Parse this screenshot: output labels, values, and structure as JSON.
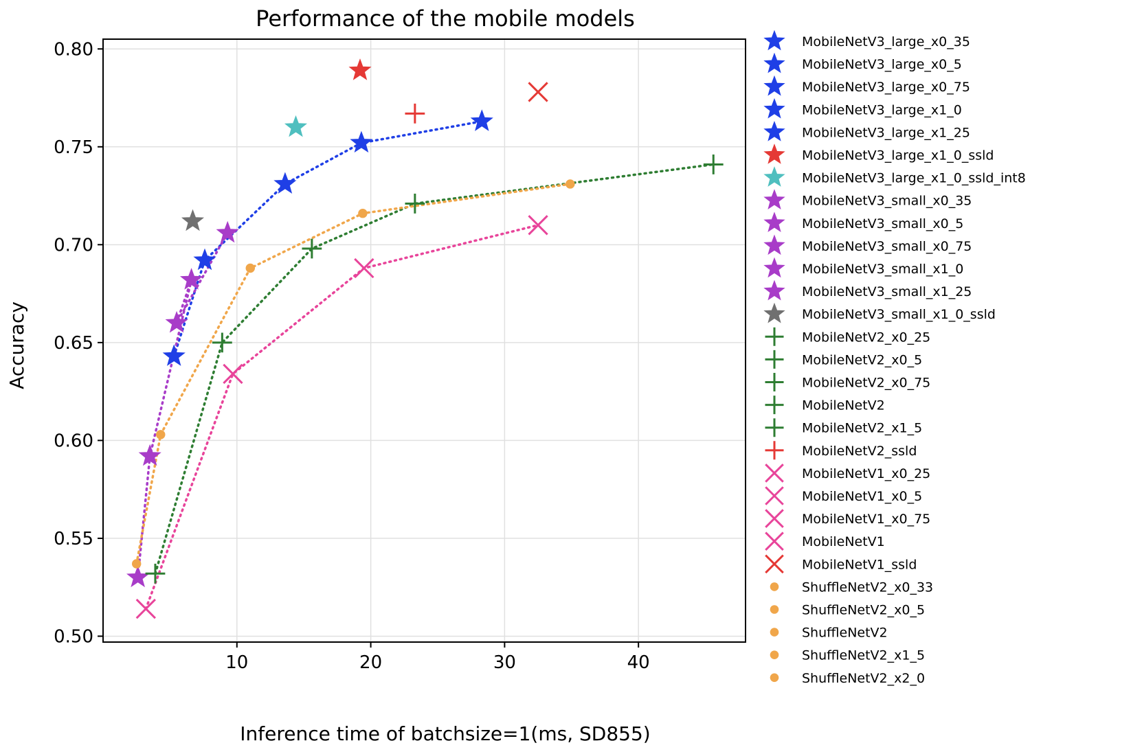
{
  "chart_data": {
    "type": "scatter",
    "title": "Performance of the mobile models",
    "xlabel": "Inference time of batchsize=1(ms, SD855)",
    "ylabel": "Accuracy",
    "xlim": [
      0,
      48
    ],
    "ylim": [
      0.497,
      0.805
    ],
    "xticks": [
      10,
      20,
      30,
      40
    ],
    "yticks": [
      0.5,
      0.55,
      0.6,
      0.65,
      0.7,
      0.75,
      0.8
    ],
    "ytick_labels": [
      "0.50",
      "0.55",
      "0.60",
      "0.65",
      "0.70",
      "0.75",
      "0.80"
    ],
    "xtick_labels": [
      "10",
      "20",
      "30",
      "40"
    ],
    "grid": true,
    "legend_position": "outside-right",
    "lines": [
      {
        "group": "MobileNetV3_large",
        "color": "#1f3fe6",
        "style": "dotted",
        "x": [
          5.3,
          7.6,
          13.6,
          19.3,
          28.3
        ],
        "y": [
          0.643,
          0.692,
          0.731,
          0.752,
          0.763
        ]
      },
      {
        "group": "MobileNetV3_small",
        "color": "#a83cc8",
        "style": "dotted",
        "x": [
          2.6,
          3.5,
          6.6,
          5.5,
          9.3
        ],
        "y": [
          0.53,
          0.592,
          0.682,
          0.66,
          0.706
        ]
      },
      {
        "group": "MobileNetV2",
        "color": "#2e7d32",
        "style": "dotted",
        "x": [
          3.9,
          8.9,
          15.6,
          23.3,
          45.6
        ],
        "y": [
          0.532,
          0.65,
          0.698,
          0.721,
          0.741
        ]
      },
      {
        "group": "MobileNetV1",
        "color": "#e8449a",
        "style": "dotted",
        "x": [
          3.2,
          9.7,
          19.5,
          32.5
        ],
        "y": [
          0.514,
          0.634,
          0.688,
          0.71
        ]
      },
      {
        "group": "ShuffleNetV2",
        "color": "#f0a64a",
        "style": "dotted",
        "x": [
          2.5,
          4.3,
          11.0,
          19.4,
          34.9
        ],
        "y": [
          0.537,
          0.603,
          0.688,
          0.716,
          0.731
        ]
      }
    ],
    "series": [
      {
        "name": "MobileNetV3_large_x0_35",
        "marker": "star",
        "color": "#1f3fe6",
        "x": 5.3,
        "y": 0.643
      },
      {
        "name": "MobileNetV3_large_x0_5",
        "marker": "star",
        "color": "#1f3fe6",
        "x": 7.6,
        "y": 0.692
      },
      {
        "name": "MobileNetV3_large_x0_75",
        "marker": "star",
        "color": "#1f3fe6",
        "x": 13.6,
        "y": 0.731
      },
      {
        "name": "MobileNetV3_large_x1_0",
        "marker": "star",
        "color": "#1f3fe6",
        "x": 19.3,
        "y": 0.752
      },
      {
        "name": "MobileNetV3_large_x1_25",
        "marker": "star",
        "color": "#1f3fe6",
        "x": 28.3,
        "y": 0.763
      },
      {
        "name": "MobileNetV3_large_x1_0_ssld",
        "marker": "star",
        "color": "#e53935",
        "x": 19.2,
        "y": 0.789
      },
      {
        "name": "MobileNetV3_large_x1_0_ssld_int8",
        "marker": "star",
        "color": "#4fbfbf",
        "x": 14.4,
        "y": 0.76
      },
      {
        "name": "MobileNetV3_small_x0_35",
        "marker": "star",
        "color": "#a83cc8",
        "x": 2.6,
        "y": 0.53
      },
      {
        "name": "MobileNetV3_small_x0_5",
        "marker": "star",
        "color": "#a83cc8",
        "x": 3.5,
        "y": 0.592
      },
      {
        "name": "MobileNetV3_small_x0_75",
        "marker": "star",
        "color": "#a83cc8",
        "x": 5.5,
        "y": 0.66
      },
      {
        "name": "MobileNetV3_small_x1_0",
        "marker": "star",
        "color": "#a83cc8",
        "x": 6.6,
        "y": 0.682
      },
      {
        "name": "MobileNetV3_small_x1_25",
        "marker": "star",
        "color": "#a83cc8",
        "x": 9.3,
        "y": 0.706
      },
      {
        "name": "MobileNetV3_small_x1_0_ssld",
        "marker": "star",
        "color": "#707070",
        "x": 6.7,
        "y": 0.712
      },
      {
        "name": "MobileNetV2_x0_25",
        "marker": "plus",
        "color": "#2e7d32",
        "x": 3.9,
        "y": 0.532
      },
      {
        "name": "MobileNetV2_x0_5",
        "marker": "plus",
        "color": "#2e7d32",
        "x": 8.9,
        "y": 0.65
      },
      {
        "name": "MobileNetV2_x0_75",
        "marker": "plus",
        "color": "#2e7d32",
        "x": 15.6,
        "y": 0.698
      },
      {
        "name": "MobileNetV2",
        "marker": "plus",
        "color": "#2e7d32",
        "x": 23.3,
        "y": 0.721
      },
      {
        "name": "MobileNetV2_x1_5",
        "marker": "plus",
        "color": "#2e7d32",
        "x": 45.6,
        "y": 0.741
      },
      {
        "name": "MobileNetV2_ssld",
        "marker": "plus",
        "color": "#e53935",
        "x": 23.3,
        "y": 0.767
      },
      {
        "name": "MobileNetV1_x0_25",
        "marker": "x",
        "color": "#e8449a",
        "x": 3.2,
        "y": 0.514
      },
      {
        "name": "MobileNetV1_x0_5",
        "marker": "x",
        "color": "#e8449a",
        "x": 9.7,
        "y": 0.634
      },
      {
        "name": "MobileNetV1_x0_75",
        "marker": "x",
        "color": "#e8449a",
        "x": 19.5,
        "y": 0.688
      },
      {
        "name": "MobileNetV1",
        "marker": "x",
        "color": "#e8449a",
        "x": 32.5,
        "y": 0.71
      },
      {
        "name": "MobileNetV1_ssld",
        "marker": "x",
        "color": "#e53935",
        "x": 32.5,
        "y": 0.778
      },
      {
        "name": "ShuffleNetV2_x0_33",
        "marker": "dot",
        "color": "#f0a64a",
        "x": 2.5,
        "y": 0.537
      },
      {
        "name": "ShuffleNetV2_x0_5",
        "marker": "dot",
        "color": "#f0a64a",
        "x": 4.3,
        "y": 0.603
      },
      {
        "name": "ShuffleNetV2",
        "marker": "dot",
        "color": "#f0a64a",
        "x": 11.0,
        "y": 0.688
      },
      {
        "name": "ShuffleNetV2_x1_5",
        "marker": "dot",
        "color": "#f0a64a",
        "x": 19.4,
        "y": 0.716
      },
      {
        "name": "ShuffleNetV2_x2_0",
        "marker": "dot",
        "color": "#f0a64a",
        "x": 34.9,
        "y": 0.731
      }
    ]
  }
}
